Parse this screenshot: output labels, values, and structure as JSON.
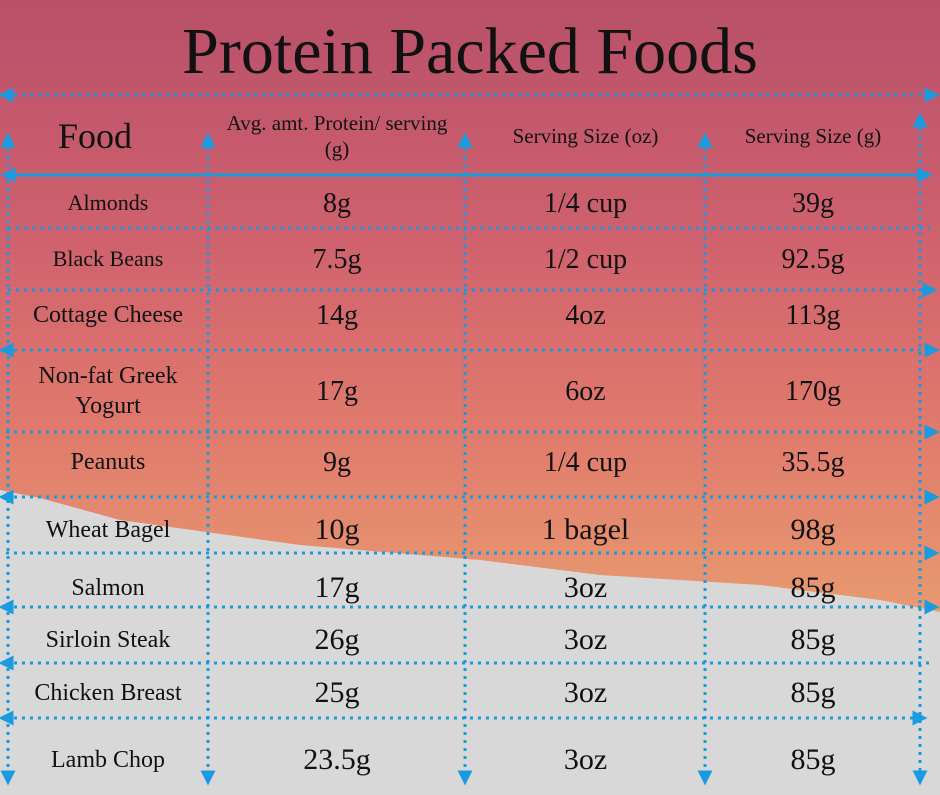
{
  "title": "Protein Packed Foods",
  "table": {
    "header": [
      "Food",
      "Avg. amt. Protein/ serving (g)",
      "Serving Size (oz)",
      "Serving Size (g)"
    ],
    "rows": [
      [
        "Almonds",
        "8g",
        "1/4 cup",
        "39g"
      ],
      [
        "Black Beans",
        "7.5g",
        "1/2 cup",
        "92.5g"
      ],
      [
        "Cottage Cheese",
        "14g",
        "4oz",
        "113g"
      ],
      [
        "Non-fat Greek Yogurt",
        "17g",
        "6oz",
        "170g"
      ],
      [
        "Peanuts",
        "9g",
        "1/4 cup",
        "35.5g"
      ],
      [
        "Wheat Bagel",
        "10g",
        "1 bagel",
        "98g"
      ],
      [
        "Salmon",
        "17g",
        "3oz",
        "85g"
      ],
      [
        "Sirloin Steak",
        "26g",
        "3oz",
        "85g"
      ],
      [
        "Chicken Breast",
        "25g",
        "3oz",
        "85g"
      ],
      [
        "Lamb Chop",
        "23.5g",
        "3oz",
        "85g"
      ]
    ]
  }
}
